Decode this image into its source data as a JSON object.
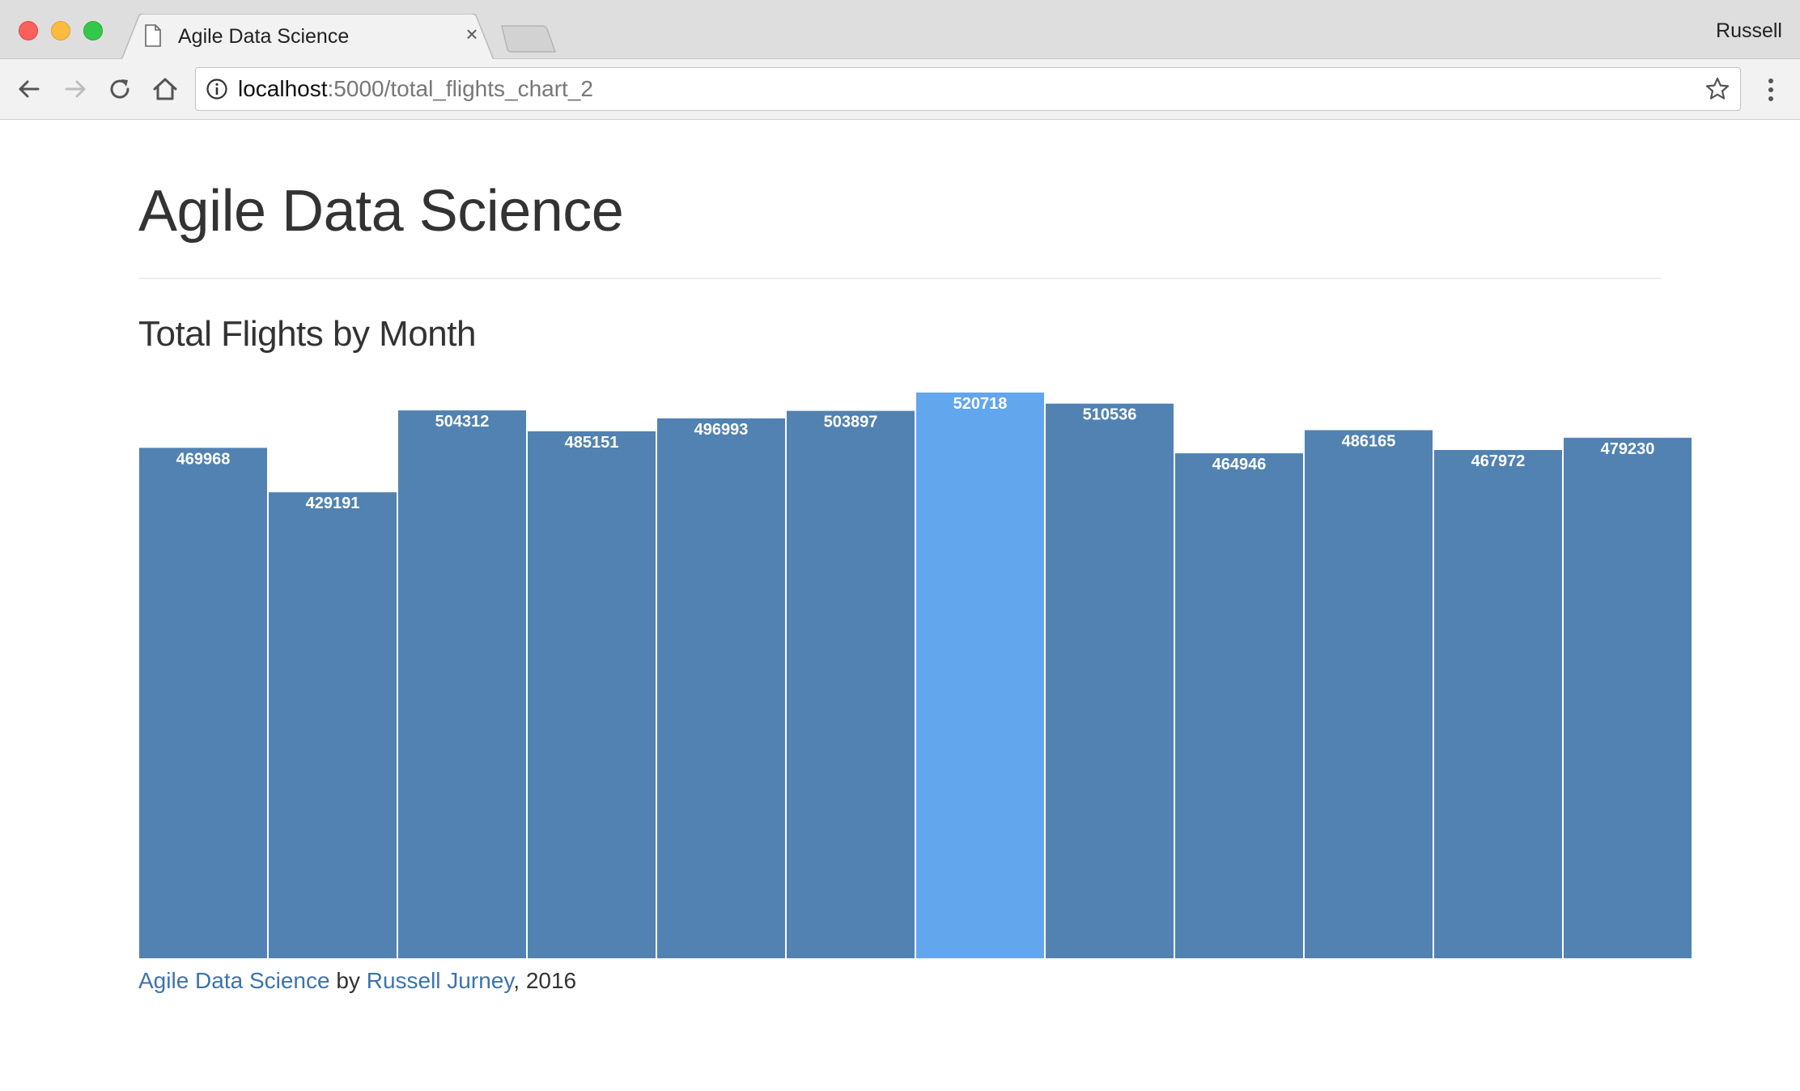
{
  "browser": {
    "tab_title": "Agile Data Science",
    "tab_close": "×",
    "profile_name": "Russell",
    "url_host": "localhost",
    "url_path": ":5000/total_flights_chart_2",
    "icons": [
      "page-icon",
      "close-icon",
      "back-icon",
      "forward-icon",
      "reload-icon",
      "home-icon",
      "info-icon",
      "star-icon",
      "menu-icon"
    ]
  },
  "page": {
    "title": "Agile Data Science",
    "chart_heading": "Total Flights by Month"
  },
  "chart_data": {
    "type": "bar",
    "title": "Total Flights by Month",
    "values": [
      469968,
      429191,
      504312,
      485151,
      496993,
      503897,
      520718,
      510536,
      464946,
      486165,
      467972,
      479230
    ],
    "highlight_index": 6,
    "colors": {
      "bar": "#5182b2",
      "highlight": "#62a6ee",
      "label": "#ffffff"
    },
    "ylim": [
      0,
      520718
    ],
    "grid": false,
    "data_labels": true
  },
  "footer": {
    "link1": "Agile Data Science",
    "by": " by ",
    "link2": "Russell Jurney",
    "year": ", 2016",
    "link_color": "#3b73b0"
  }
}
